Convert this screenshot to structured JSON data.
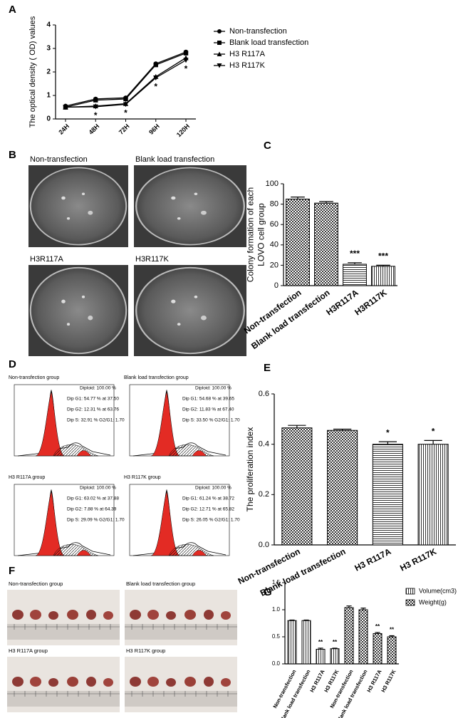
{
  "panel_letters": [
    "A",
    "B",
    "C",
    "D",
    "E",
    "F",
    "G"
  ],
  "colony_photos": {
    "labels": [
      "Non-transfection",
      "Blank load transfection",
      "H3R117A",
      "H3R117K"
    ]
  },
  "flow_cytometry": [
    {
      "group": "Non-transfection group",
      "stats": [
        "Diploid: 100.00 %",
        "Dip G1: 54.77 % at 37.50",
        "Dip G2: 12.31 % at 63.76",
        "Dip S: 32.91 %   G2/G1: 1.70"
      ]
    },
    {
      "group": "Blank load transfection group",
      "stats": [
        "Diploid: 100.00 %",
        "Dip G1: 54.68 % at 39.65",
        "Dip G2: 11.83 % at 67.40",
        "Dip S: 33.50 %   G2/G1: 1.70"
      ]
    },
    {
      "group": "H3 R117A group",
      "stats": [
        "Diploid: 100.00 %",
        "Dip G1: 63.02 % at 37.88",
        "Dip G2: 7.88 % at 64.39",
        "Dip S: 29.09 %   G2/G1: 1.70"
      ]
    },
    {
      "group": "H3 R117K group",
      "stats": [
        "Diploid: 100.00 %",
        "Dip G1: 61.24 % at 38.72",
        "Dip G2: 12.71 % at 65.82",
        "Dip S: 26.05 %   G2/G1: 1.70"
      ]
    }
  ],
  "tumor_photos": {
    "labels": [
      "Non-transfection group",
      "Blank load transfection group",
      "H3 R117A group",
      "H3 R117K group"
    ]
  },
  "chart_data": [
    {
      "type": "line",
      "y_label": "The optical density ( OD) values",
      "categories": [
        "24H",
        "48H",
        "72H",
        "96H",
        "120H"
      ],
      "series": [
        {
          "name": "Non-transfection",
          "marker": "circle",
          "color": "#000000",
          "values": [
            0.55,
            0.85,
            0.9,
            2.35,
            2.85
          ]
        },
        {
          "name": "Blank load transfection",
          "marker": "square",
          "color": "#000000",
          "values": [
            0.5,
            0.8,
            0.85,
            2.3,
            2.8
          ]
        },
        {
          "name": "H3 R117A",
          "marker": "triangle-up",
          "color": "#000000",
          "values": [
            0.5,
            0.55,
            0.65,
            1.8,
            2.6
          ]
        },
        {
          "name": "H3 R117K",
          "marker": "triangle-down",
          "color": "#000000",
          "values": [
            0.5,
            0.52,
            0.62,
            1.75,
            2.5
          ]
        }
      ],
      "annotations": [
        null,
        "*",
        "*",
        "*",
        "*"
      ],
      "ylim": [
        0,
        4
      ],
      "yticks": [
        0,
        1,
        2,
        3,
        4
      ]
    },
    {
      "type": "bar",
      "y_label": [
        "Colony formation of each",
        "LOVO cell group"
      ],
      "categories": [
        "Non-transfection",
        "Blank load transfection",
        "H3R117A",
        "H3R117K"
      ],
      "values": [
        85,
        81,
        21,
        19
      ],
      "errors": [
        2,
        1.5,
        1.5,
        1
      ],
      "patterns": [
        "check",
        "check",
        "hstripe",
        "vstripe"
      ],
      "annotations": [
        null,
        null,
        "***",
        "***"
      ],
      "ylim": [
        0,
        100
      ],
      "yticks": [
        0,
        20,
        40,
        60,
        80,
        100
      ]
    },
    {
      "type": "bar",
      "y_label": "The proliferation index",
      "categories": [
        "Non-transfection",
        "Blank load transfection",
        "H3 R117A",
        "H3 R117K"
      ],
      "values": [
        0.465,
        0.455,
        0.4,
        0.4
      ],
      "errors": [
        0.01,
        0.005,
        0.01,
        0.015
      ],
      "patterns": [
        "check",
        "check",
        "hstripe",
        "vstripe"
      ],
      "annotations": [
        null,
        null,
        "*",
        "*"
      ],
      "ylim": [
        0,
        0.6
      ],
      "yticks": [
        {
          "value": 0,
          "label": "0.0"
        },
        0.2,
        0.4,
        0.6
      ]
    },
    {
      "type": "grouped-bar",
      "categories": [
        "Non-transfection",
        "Blank load transfection",
        "H3 R117A",
        "H3 R117K",
        "Non-transfection",
        "Blank load transfection",
        "H3 R117A",
        "H3 R117K"
      ],
      "series": [
        {
          "name": "Volume(cm3)",
          "pattern": "vstripe",
          "values": [
            0.8,
            0.8,
            0.27,
            0.28,
            null,
            null,
            null,
            null
          ],
          "errors": [
            0.01,
            0.01,
            0.02,
            0.01,
            null,
            null,
            null,
            null
          ]
        },
        {
          "name": "Weight(g)",
          "pattern": "check",
          "values": [
            null,
            null,
            null,
            null,
            1.04,
            1.0,
            0.56,
            0.5
          ],
          "errors": [
            null,
            null,
            null,
            null,
            0.03,
            0.03,
            0.02,
            0.02
          ]
        }
      ],
      "annotations": [
        null,
        null,
        "**",
        "**",
        null,
        null,
        "**",
        "**"
      ],
      "ylim": [
        0,
        1.5
      ],
      "yticks": [
        {
          "value": 0,
          "label": "0.0"
        },
        0.5,
        {
          "value": 1,
          "label": "1.0"
        },
        1.5
      ]
    }
  ]
}
